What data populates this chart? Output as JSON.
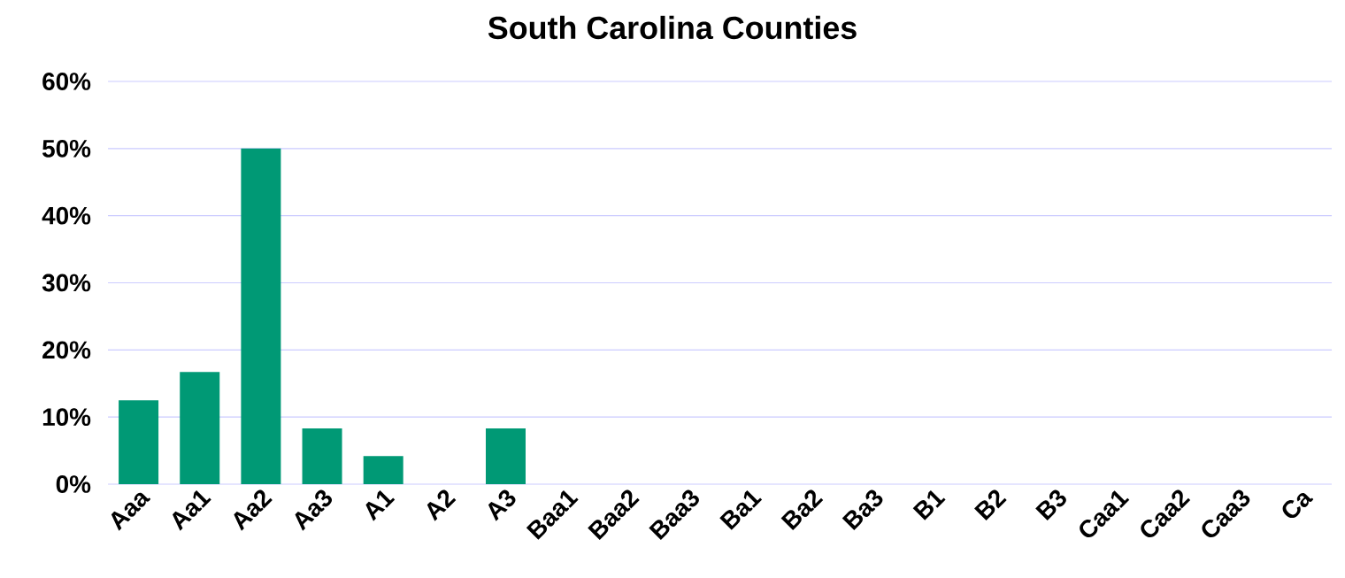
{
  "chart_data": {
    "type": "bar",
    "title": "South Carolina Counties",
    "categories": [
      "Aaa",
      "Aa1",
      "Aa2",
      "Aa3",
      "A1",
      "A2",
      "A3",
      "Baa1",
      "Baa2",
      "Baa3",
      "Ba1",
      "Ba2",
      "Ba3",
      "B1",
      "B2",
      "B3",
      "Caa1",
      "Caa2",
      "Caa3",
      "Ca"
    ],
    "values": [
      12.5,
      16.7,
      50,
      8.3,
      4.2,
      0,
      8.3,
      0,
      0,
      0,
      0,
      0,
      0,
      0,
      0,
      0,
      0,
      0,
      0,
      0
    ],
    "color": "#009975",
    "ylim": [
      0,
      60
    ],
    "yticks": [
      {
        "value": 0,
        "label": "0%"
      },
      {
        "value": 10,
        "label": "10%"
      },
      {
        "value": 20,
        "label": "20%"
      },
      {
        "value": 30,
        "label": "30%"
      },
      {
        "value": 40,
        "label": "40%"
      },
      {
        "value": 50,
        "label": "50%"
      },
      {
        "value": 60,
        "label": "60%"
      }
    ],
    "grid": "y"
  }
}
